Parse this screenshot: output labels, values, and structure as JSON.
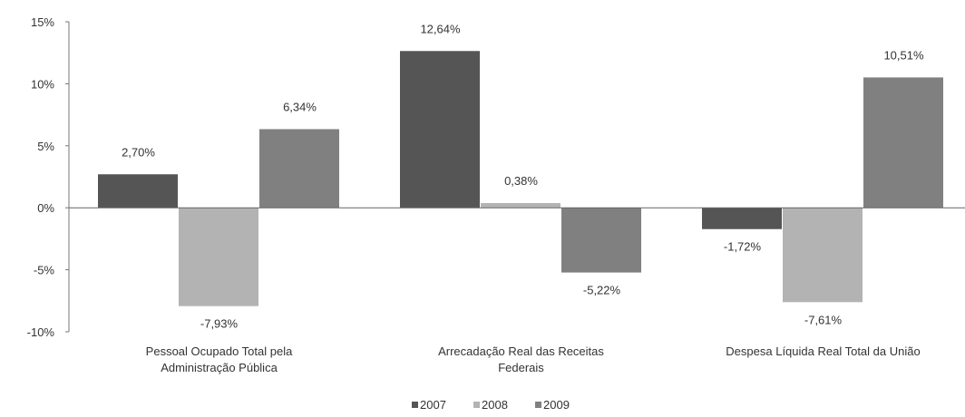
{
  "chart_data": {
    "type": "bar",
    "categories": [
      [
        "Pessoal Ocupado Total pela",
        "Administração Pública"
      ],
      [
        "Arrecadação Real das Receitas",
        "Federais"
      ],
      [
        "Despesa Líquida Real Total da União"
      ]
    ],
    "series": [
      {
        "name": "2007",
        "color": "#555555",
        "values": [
          2.7,
          12.64,
          -1.72
        ],
        "labels": [
          "2,70%",
          "12,64%",
          "-1,72%"
        ]
      },
      {
        "name": "2008",
        "color": "#b3b3b3",
        "values": [
          -7.93,
          0.38,
          -7.61
        ],
        "labels": [
          "-7,93%",
          "0,38%",
          "-7,61%"
        ]
      },
      {
        "name": "2009",
        "color": "#808080",
        "values": [
          6.34,
          -5.22,
          10.51
        ],
        "labels": [
          "6,34%",
          "-5,22%",
          "10,51%"
        ]
      }
    ],
    "yticks": [
      {
        "value": 15,
        "label": "15%"
      },
      {
        "value": 10,
        "label": "10%"
      },
      {
        "value": 5,
        "label": "5%"
      },
      {
        "value": 0,
        "label": "0%"
      },
      {
        "value": -5,
        "label": "-5%"
      },
      {
        "value": -10,
        "label": "-10%"
      }
    ],
    "ylim": [
      -10,
      15
    ],
    "legend_position": "bottom-center",
    "grid": false
  }
}
